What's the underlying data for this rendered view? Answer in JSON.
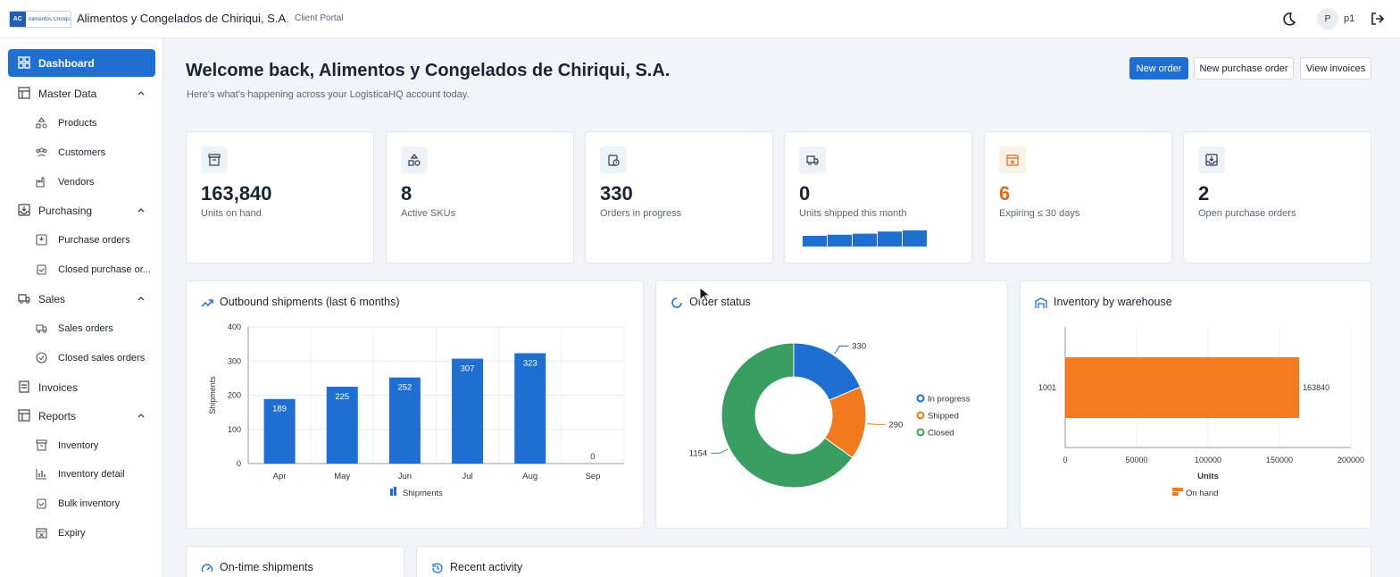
{
  "topbar": {
    "logo_badge": "AC",
    "logo_text": "Alimentos Chiriqui",
    "company": "Alimentos y Congelados de Chiriqui, S.A.",
    "portal": "Client Portal",
    "avatar": "P",
    "user": "p1",
    "theme_icon": "moon-icon",
    "logout_icon": "logout-icon"
  },
  "sidebar": {
    "dashboard": "Dashboard",
    "master_data": "Master Data",
    "products": "Products",
    "customers": "Customers",
    "vendors": "Vendors",
    "purchasing": "Purchasing",
    "purchase_orders": "Purchase orders",
    "closed_purchase": "Closed purchase or...",
    "sales": "Sales",
    "sales_orders": "Sales orders",
    "closed_sales": "Closed sales orders",
    "invoices": "Invoices",
    "reports": "Reports",
    "inventory": "Inventory",
    "inventory_detail": "Inventory detail",
    "bulk_inventory": "Bulk inventory",
    "expiry": "Expiry"
  },
  "header": {
    "welcome": "Welcome back, Alimentos y Congelados de Chiriqui, S.A.",
    "subtitle": "Here's what's happening across your LogisticaHQ account today.",
    "new_order": "New order",
    "new_purchase_order": "New purchase order",
    "view_invoices": "View invoices"
  },
  "kpis": [
    {
      "value": "163,840",
      "label": "Units on hand"
    },
    {
      "value": "8",
      "label": "Active SKUs"
    },
    {
      "value": "330",
      "label": "Orders in progress"
    },
    {
      "value": "0",
      "label": "Units shipped this month",
      "sparkline": [
        10,
        11,
        12,
        14,
        15
      ]
    },
    {
      "value": "6",
      "label": "Expiring ≤ 30 days",
      "accent": "#d96a1e"
    },
    {
      "value": "2",
      "label": "Open purchase orders"
    }
  ],
  "panels": {
    "outbound_title": "Outbound shipments (last 6 months)",
    "status_title": "Order status",
    "warehouse_title": "Inventory by warehouse",
    "ontime_title": "On-time shipments",
    "activity_title": "Recent activity"
  },
  "chart_data": [
    {
      "type": "bar",
      "title": "Outbound shipments (last 6 months)",
      "categories": [
        "Apr",
        "May",
        "Jun",
        "Jul",
        "Aug",
        "Sep"
      ],
      "series": [
        {
          "name": "Shipments",
          "values": [
            189,
            225,
            252,
            307,
            323,
            0
          ]
        }
      ],
      "ylabel": "Shipments",
      "ylim": [
        0,
        400
      ],
      "yticks": [
        0,
        100,
        200,
        300,
        400
      ],
      "color": "#1e6fd1",
      "grid": true,
      "legend": "bottom"
    },
    {
      "type": "pie",
      "title": "Order status",
      "categories": [
        "In progress",
        "Shipped",
        "Closed"
      ],
      "values": [
        330,
        290,
        1154
      ],
      "colors": [
        "#1e6fd1",
        "#f07a1d",
        "#3a9e63"
      ],
      "legend": "right"
    },
    {
      "type": "bar",
      "orientation": "horizontal",
      "title": "Inventory by warehouse",
      "categories": [
        "1001"
      ],
      "series": [
        {
          "name": "On hand",
          "values": [
            163840
          ]
        }
      ],
      "xlabel": "Units",
      "xlim": [
        0,
        200000
      ],
      "xticks": [
        0,
        50000,
        100000,
        150000,
        200000
      ],
      "color": "#f47a1f",
      "grid": true,
      "legend": "bottom"
    }
  ]
}
